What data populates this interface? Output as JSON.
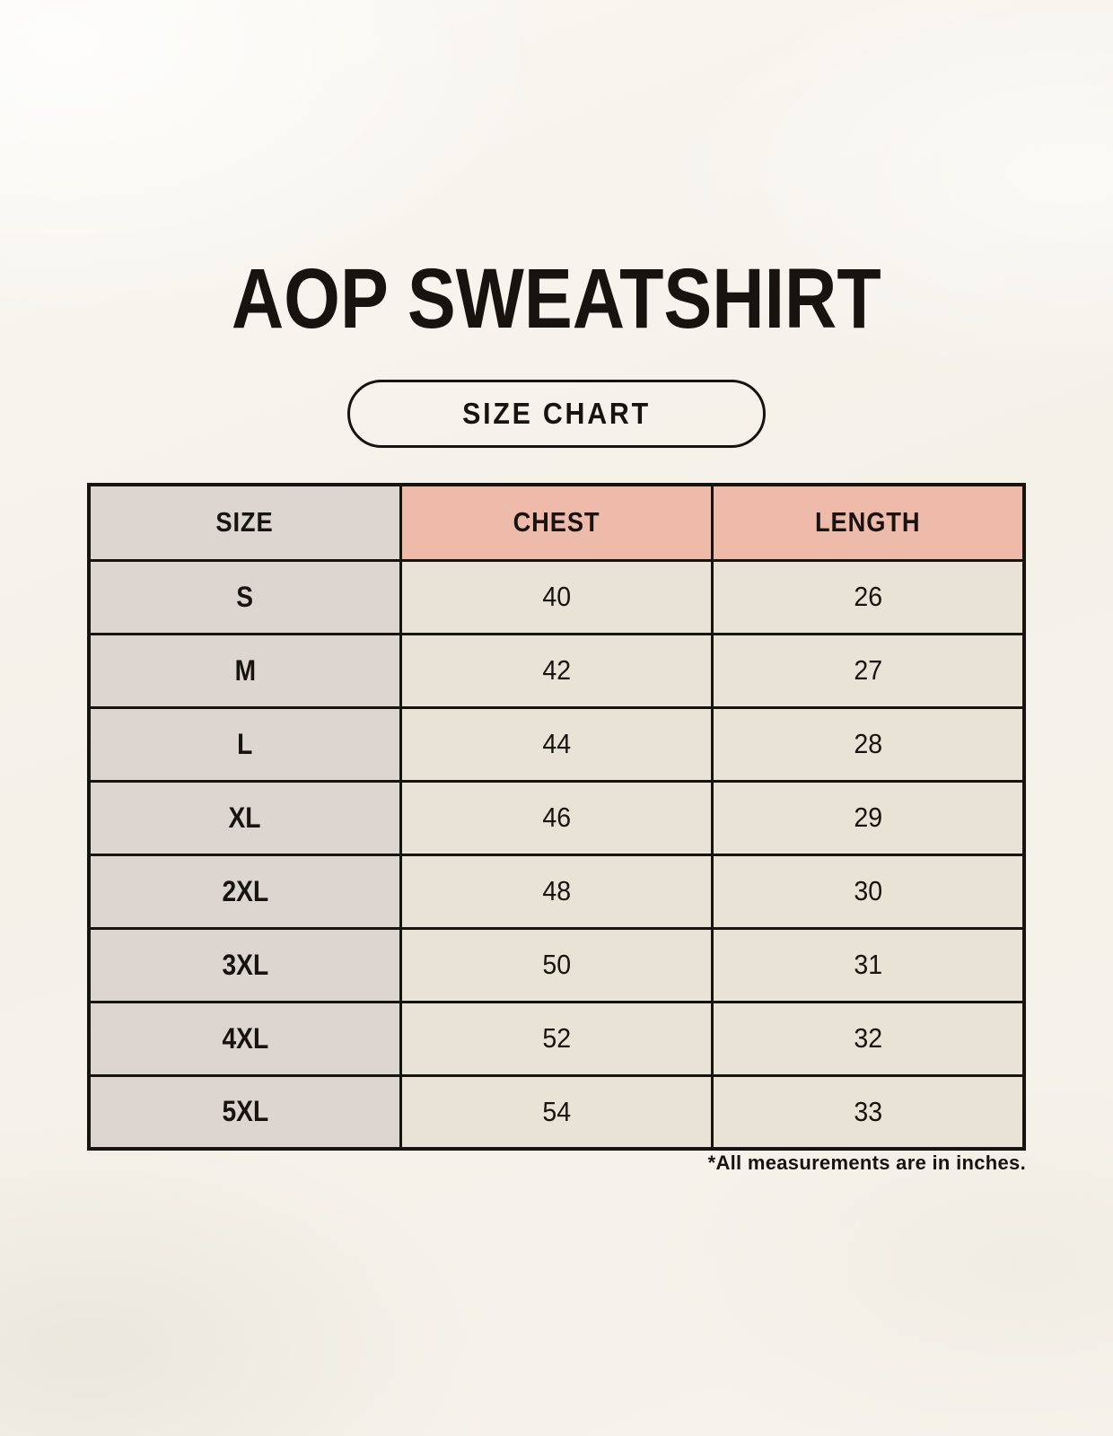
{
  "page": {
    "title": "AOP SWEATSHIRT",
    "badge": "SIZE CHART",
    "footnote": "*All measurements are in inches."
  },
  "chart_data": {
    "type": "table",
    "title": "AOP SWEATSHIRT",
    "subtitle": "SIZE CHART",
    "units": "inches",
    "columns": [
      "SIZE",
      "CHEST",
      "LENGTH"
    ],
    "rows": [
      [
        "S",
        "40",
        "26"
      ],
      [
        "M",
        "42",
        "27"
      ],
      [
        "L",
        "44",
        "28"
      ],
      [
        "XL",
        "46",
        "29"
      ],
      [
        "2XL",
        "48",
        "30"
      ],
      [
        "3XL",
        "50",
        "31"
      ],
      [
        "4XL",
        "52",
        "32"
      ],
      [
        "5XL",
        "54",
        "33"
      ]
    ],
    "footnote": "*All measurements are in inches."
  },
  "colors": {
    "page_bg": "#f5f2eb",
    "size_column_bg": "#dcd5d0",
    "header_accent_bg": "#eebaaa",
    "value_cell_bg": "#e9e2d6",
    "line_color": "#17130f",
    "text_color": "#17130f"
  }
}
